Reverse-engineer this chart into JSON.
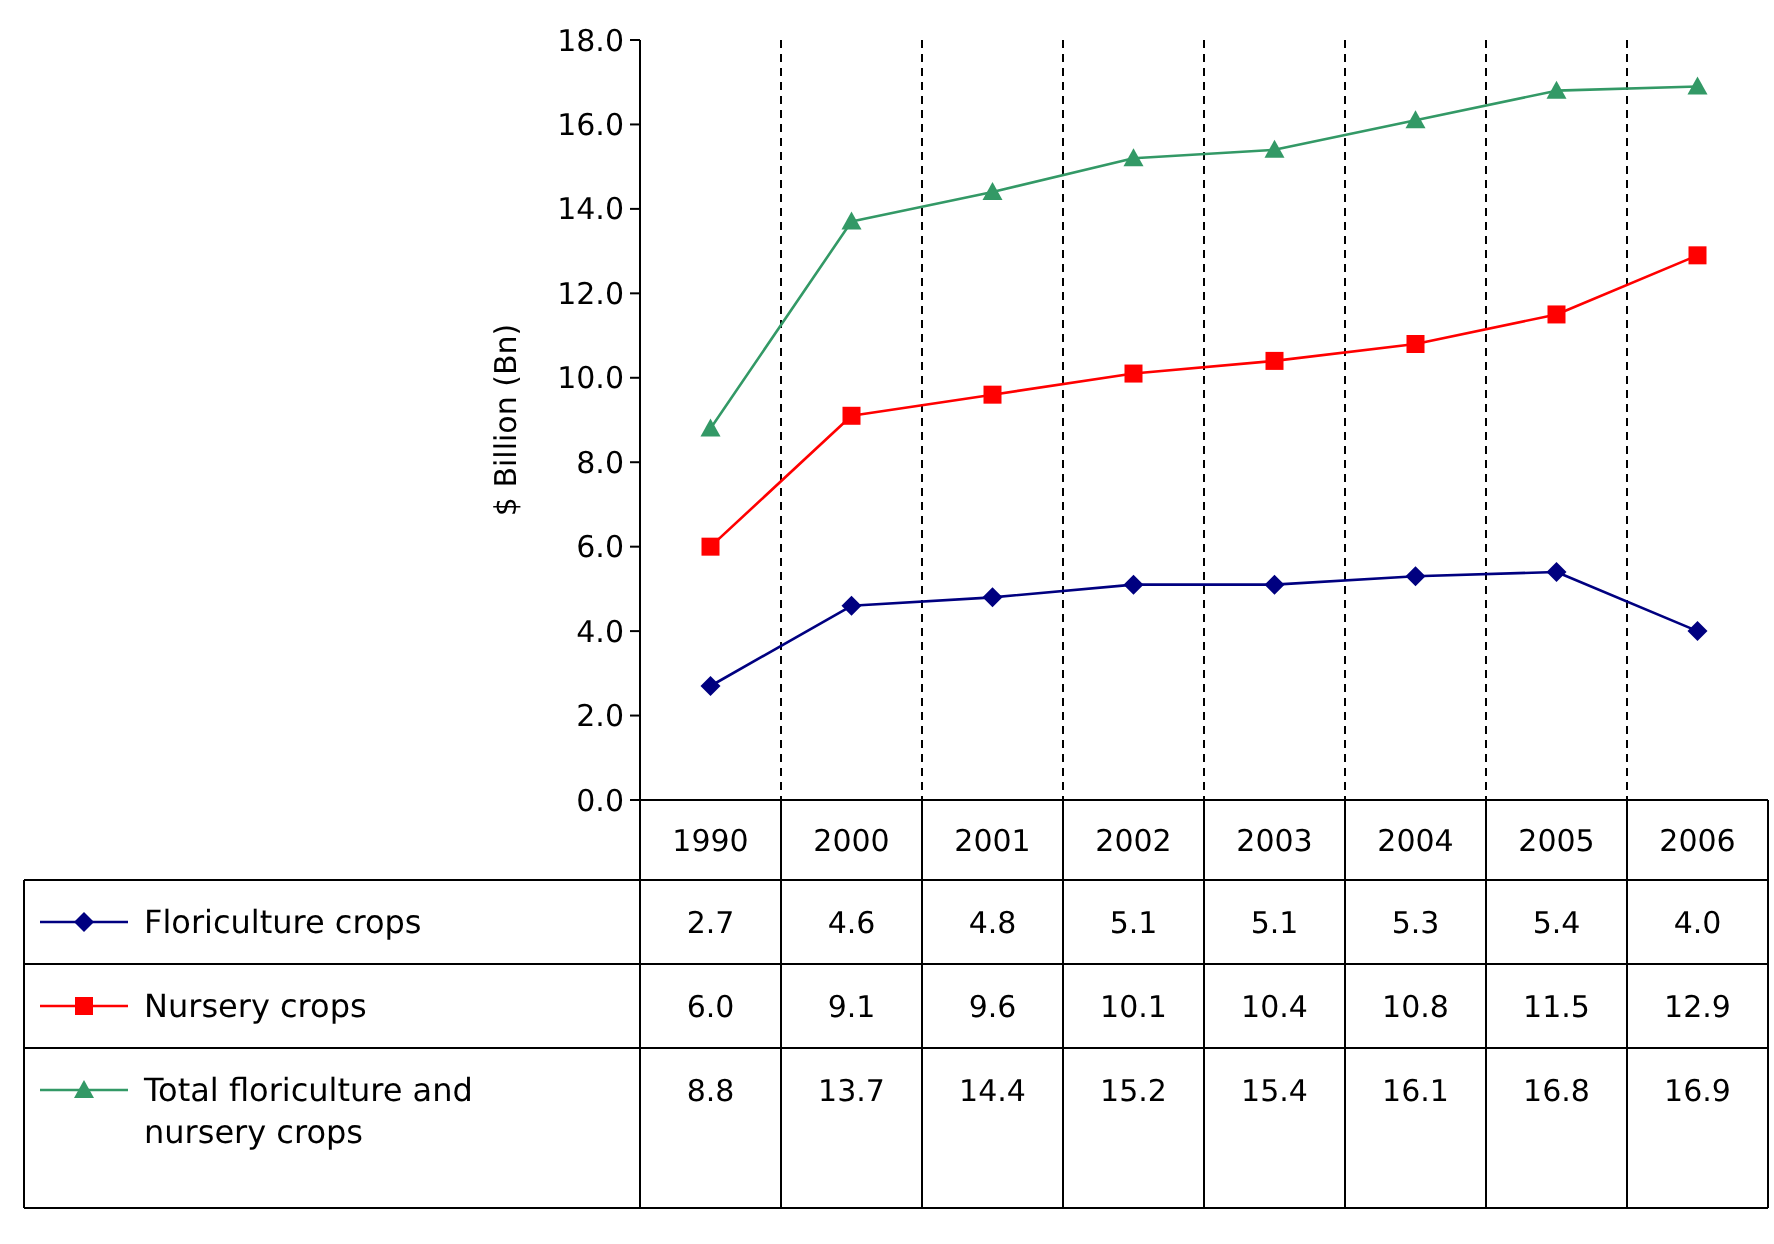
{
  "chart_data": {
    "type": "line",
    "ylabel": "$ Billion (Bn)",
    "categories": [
      "1990",
      "2000",
      "2001",
      "2002",
      "2003",
      "2004",
      "2005",
      "2006"
    ],
    "ylim": [
      0,
      18
    ],
    "yticks": [
      {
        "value": 0,
        "label": "0.0"
      },
      {
        "value": 2,
        "label": "2.0"
      },
      {
        "value": 4,
        "label": "4.0"
      },
      {
        "value": 6,
        "label": "6.0"
      },
      {
        "value": 8,
        "label": "8.0"
      },
      {
        "value": 10,
        "label": "10.0"
      },
      {
        "value": 12,
        "label": "12.0"
      },
      {
        "value": 14,
        "label": "14.0"
      },
      {
        "value": 16,
        "label": "16.0"
      },
      {
        "value": 18,
        "label": "18.0"
      }
    ],
    "grid": "x",
    "legend": "bottom",
    "series": [
      {
        "name": "Floriculture crops",
        "color": "#000080",
        "marker": "diamond",
        "values": [
          2.7,
          4.6,
          4.8,
          5.1,
          5.1,
          5.3,
          5.4,
          4.0
        ],
        "value_labels": [
          "2.7",
          "4.6",
          "4.8",
          "5.1",
          "5.1",
          "5.3",
          "5.4",
          "4.0"
        ]
      },
      {
        "name": "Nursery crops",
        "color": "#ff0000",
        "marker": "square",
        "values": [
          6.0,
          9.1,
          9.6,
          10.1,
          10.4,
          10.8,
          11.5,
          12.9
        ],
        "value_labels": [
          "6.0",
          "9.1",
          "9.6",
          "10.1",
          "10.4",
          "10.8",
          "11.5",
          "12.9"
        ]
      },
      {
        "name": "Total floriculture and nursery crops",
        "color": "#339966",
        "marker": "triangle",
        "values": [
          8.8,
          13.7,
          14.4,
          15.2,
          15.4,
          16.1,
          16.8,
          16.9
        ],
        "value_labels": [
          "8.8",
          "13.7",
          "14.4",
          "15.2",
          "15.4",
          "16.1",
          "16.8",
          "16.9"
        ]
      }
    ]
  }
}
